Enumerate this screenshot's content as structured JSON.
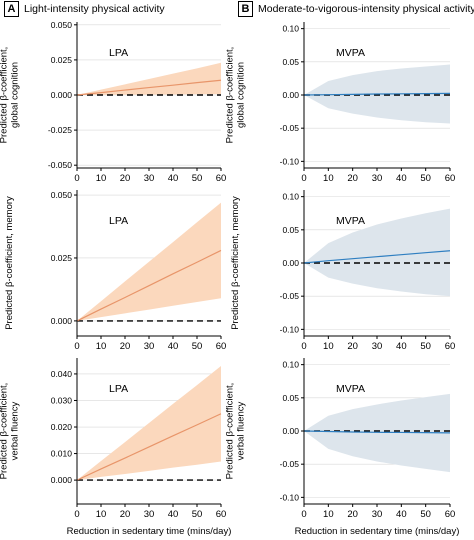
{
  "figure": {
    "panels": [
      {
        "letter": "A",
        "title": "Light-intensity physical activity"
      },
      {
        "letter": "B",
        "title": "Moderate-to-vigorous-intensity physical activity"
      }
    ],
    "colors": {
      "lpa_line": "#e8956a",
      "lpa_band": "#fbd8bd",
      "mvpa_line": "#2f7fc1",
      "mvpa_band": "#dde5ec",
      "axis": "#000000",
      "grid": "#d9d9d9",
      "reference": "#000000"
    }
  },
  "chart_data": [
    {
      "type": "line",
      "label": "LPA",
      "panel": "A",
      "ylabel": [
        "Predicted β-coefficient,",
        "global cognition"
      ],
      "xlabel": "",
      "x": [
        0,
        10,
        20,
        30,
        40,
        50,
        60
      ],
      "xlim": [
        0,
        60
      ],
      "ylim": [
        -0.052,
        0.052
      ],
      "yticks": [
        "-0.050",
        "-0.025",
        "0.000",
        "0.025",
        "0.050"
      ],
      "ytick_values": [
        -0.05,
        -0.025,
        0,
        0.025,
        0.05
      ],
      "estimate": [
        0,
        0.0017,
        0.0035,
        0.0053,
        0.007,
        0.0088,
        0.0105
      ],
      "ci_lower": [
        0,
        0.0001,
        0.0002,
        0.0003,
        0.0004,
        0.0005,
        0.0006
      ],
      "ci_upper": [
        0,
        0.0038,
        0.0076,
        0.0114,
        0.0152,
        0.019,
        0.023
      ],
      "reference_line": 0
    },
    {
      "type": "line",
      "label": "MVPA",
      "panel": "B",
      "ylabel": [
        "Predicted β-coefficient,",
        "global cognition"
      ],
      "xlabel": "",
      "x": [
        0,
        10,
        20,
        30,
        40,
        50,
        60
      ],
      "xlim": [
        0,
        60
      ],
      "ylim": [
        -0.11,
        0.11
      ],
      "yticks": [
        "-0.10",
        "-0.05",
        "0.00",
        "0.05",
        "0.10"
      ],
      "ytick_values": [
        -0.1,
        -0.05,
        0,
        0.05,
        0.1
      ],
      "estimate": [
        0,
        0.0005,
        0.001,
        0.0015,
        0.0018,
        0.0021,
        0.0025
      ],
      "ci_lower": [
        0,
        -0.02,
        -0.028,
        -0.034,
        -0.038,
        -0.041,
        -0.043
      ],
      "ci_upper": [
        0,
        0.021,
        0.03,
        0.036,
        0.04,
        0.043,
        0.046
      ],
      "reference_line": 0
    },
    {
      "type": "line",
      "label": "LPA",
      "panel": "A",
      "ylabel": [
        "Predicted β-coefficient, memory"
      ],
      "xlabel": "",
      "x": [
        0,
        10,
        20,
        30,
        40,
        50,
        60
      ],
      "xlim": [
        0,
        60
      ],
      "ylim": [
        -0.006,
        0.052
      ],
      "yticks": [
        "0.000",
        "0.025",
        "0.050"
      ],
      "ytick_values": [
        0,
        0.025,
        0.05
      ],
      "estimate": [
        0,
        0.0047,
        0.0093,
        0.014,
        0.0187,
        0.0233,
        0.028
      ],
      "ci_lower": [
        0,
        0.0015,
        0.003,
        0.0045,
        0.006,
        0.0075,
        0.009
      ],
      "ci_upper": [
        0,
        0.0078,
        0.0157,
        0.0235,
        0.0313,
        0.0392,
        0.047
      ],
      "reference_line": 0
    },
    {
      "type": "line",
      "label": "MVPA",
      "panel": "B",
      "ylabel": [
        "Predicted β-coefficient, memory"
      ],
      "xlabel": "",
      "x": [
        0,
        10,
        20,
        30,
        40,
        50,
        60
      ],
      "xlim": [
        0,
        60
      ],
      "ylim": [
        -0.11,
        0.11
      ],
      "yticks": [
        "-0.10",
        "-0.05",
        "0.00",
        "0.05",
        "0.10"
      ],
      "ytick_values": [
        -0.1,
        -0.05,
        0,
        0.05,
        0.1
      ],
      "estimate": [
        0,
        0.0035,
        0.0065,
        0.0095,
        0.0125,
        0.0155,
        0.0185
      ],
      "ci_lower": [
        0,
        -0.022,
        -0.031,
        -0.038,
        -0.043,
        -0.047,
        -0.05
      ],
      "ci_upper": [
        0,
        0.03,
        0.046,
        0.058,
        0.067,
        0.075,
        0.082
      ],
      "reference_line": 0
    },
    {
      "type": "line",
      "label": "LPA",
      "panel": "A",
      "ylabel": [
        "Predicted β-coefficient,",
        "verbal fluency"
      ],
      "xlabel": "Reduction in sedentary time (mins/day)",
      "x": [
        0,
        10,
        20,
        30,
        40,
        50,
        60
      ],
      "xlim": [
        0,
        60
      ],
      "ylim": [
        -0.009,
        0.046
      ],
      "yticks": [
        "0.000",
        "0.010",
        "0.020",
        "0.030",
        "0.040"
      ],
      "ytick_values": [
        0,
        0.01,
        0.02,
        0.03,
        0.04
      ],
      "estimate": [
        0,
        0.0042,
        0.0083,
        0.0125,
        0.0167,
        0.0208,
        0.025
      ],
      "ci_lower": [
        0,
        0.0012,
        0.0023,
        0.0035,
        0.0047,
        0.0058,
        0.007
      ],
      "ci_upper": [
        0,
        0.0072,
        0.0143,
        0.0215,
        0.0287,
        0.0358,
        0.043
      ],
      "reference_line": 0
    },
    {
      "type": "line",
      "label": "MVPA",
      "panel": "B",
      "ylabel": [
        "Predicted β-coefficient,",
        "verbal fluency"
      ],
      "xlabel": "Reduction in sedentary time (mins/day)",
      "x": [
        0,
        10,
        20,
        30,
        40,
        50,
        60
      ],
      "xlim": [
        0,
        60
      ],
      "ylim": [
        -0.11,
        0.11
      ],
      "yticks": [
        "-0.10",
        "-0.05",
        "0.00",
        "0.05",
        "0.10"
      ],
      "ytick_values": [
        -0.1,
        -0.05,
        0,
        0.05,
        0.1
      ],
      "estimate": [
        0,
        -0.0008,
        -0.0015,
        -0.002,
        -0.0022,
        -0.0025,
        -0.0028
      ],
      "ci_lower": [
        0,
        -0.027,
        -0.038,
        -0.046,
        -0.052,
        -0.057,
        -0.062
      ],
      "ci_upper": [
        0,
        0.023,
        0.033,
        0.04,
        0.046,
        0.051,
        0.056
      ],
      "reference_line": 0
    }
  ]
}
